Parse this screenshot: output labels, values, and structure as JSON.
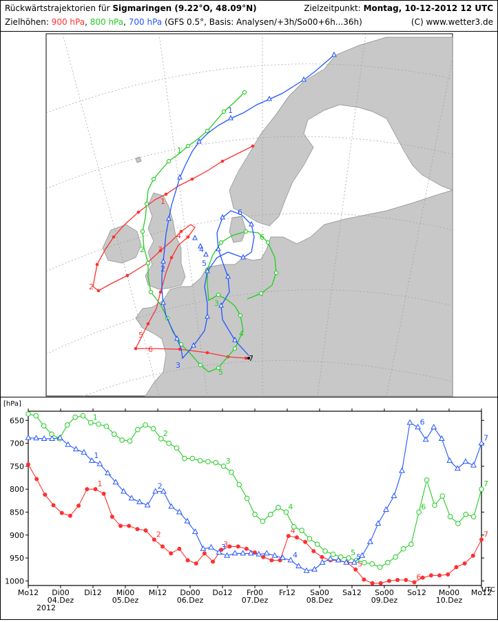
{
  "header": {
    "title_prefix": "Rückwärtstrajektorien für",
    "location": "Sigmaringen (9.22°O, 48.09°N)",
    "target_label": "Zielzeitpunkt:",
    "target_value": "Montag, 10-12-2012   12 UTC",
    "heights_label": "Zielhöhen:",
    "level_900": "900 hPa",
    "level_800": "800 hPa",
    "level_700": "700 hPa",
    "sep": ",",
    "basis": "(GFS 0.5°, Basis: Analysen/+3h/So00+6h...36h)",
    "copyright": "(C) www.wetter3.de"
  },
  "colors": {
    "hpa900": "#ff3030",
    "hpa800": "#22cc22",
    "hpa700": "#2255ff",
    "land": "#c8c8c8",
    "sea": "#ffffff"
  },
  "chart_data": {
    "type": "line",
    "yunit": "[hPa]",
    "xunit": "UTC",
    "ylim": [
      1010,
      630
    ],
    "yticks": [
      650,
      700,
      750,
      800,
      850,
      900,
      950,
      1000
    ],
    "xticks": [
      "Mo12",
      "Di00",
      "Di12",
      "Mi00",
      "Mi12",
      "Do00",
      "Do12",
      "Fr00",
      "Fr12",
      "Sa00",
      "Sa12",
      "So00",
      "So12",
      "Mo00",
      "Mo12"
    ],
    "xdates": [
      {
        "tick": 1,
        "label": "04.Dez"
      },
      {
        "tick": 3,
        "label": "05.Dez"
      },
      {
        "tick": 5,
        "label": "06.Dez"
      },
      {
        "tick": 7,
        "label": "07.Dez"
      },
      {
        "tick": 9,
        "label": "08.Dez"
      },
      {
        "tick": 11,
        "label": "09.Dez"
      },
      {
        "tick": 13,
        "label": "10.Dez"
      }
    ],
    "year": "2012",
    "grid": false,
    "day_markers": [
      "1",
      "2",
      "3",
      "4",
      "5",
      "6",
      "7"
    ],
    "series": [
      {
        "name": "900 hPa",
        "marker": "dot",
        "values": [
          746,
          778,
          812,
          835,
          852,
          858,
          836,
          800,
          800,
          810,
          860,
          880,
          880,
          887,
          890,
          910,
          925,
          940,
          930,
          955,
          962,
          940,
          958,
          932,
          925,
          925,
          930,
          938,
          948,
          955,
          955,
          902,
          905,
          915,
          935,
          948,
          955,
          955,
          960,
          975,
          997,
          1005,
          1005,
          1000,
          998,
          998,
          1003,
          993,
          988,
          988,
          986,
          970,
          962,
          945,
          910
        ]
      },
      {
        "name": "800 hPa",
        "marker": "circle",
        "values": [
          636,
          640,
          662,
          680,
          690,
          660,
          643,
          640,
          655,
          658,
          663,
          680,
          693,
          695,
          670,
          660,
          668,
          690,
          700,
          710,
          733,
          733,
          738,
          740,
          742,
          750,
          763,
          790,
          820,
          855,
          870,
          855,
          840,
          850,
          882,
          890,
          908,
          920,
          935,
          942,
          948,
          950,
          955,
          960,
          963,
          970,
          960,
          948,
          930,
          920,
          850,
          780,
          835,
          815,
          860,
          875,
          855,
          860,
          800
        ]
      },
      {
        "name": "700 hPa",
        "marker": "triangle",
        "values": [
          688,
          689,
          690,
          690,
          688,
          703,
          713,
          720,
          738,
          745,
          765,
          785,
          805,
          820,
          828,
          835,
          805,
          805,
          838,
          850,
          870,
          893,
          930,
          927,
          938,
          945,
          940,
          940,
          940,
          942,
          940,
          945,
          950,
          955,
          968,
          978,
          975,
          960,
          952,
          955,
          960,
          960,
          945,
          915,
          875,
          845,
          815,
          760,
          655,
          665,
          692,
          665,
          690,
          738,
          755,
          740,
          748,
          700
        ]
      }
    ]
  },
  "map": {
    "labels_900": [
      "1",
      "2",
      "3",
      "4",
      "5",
      "6",
      "7"
    ],
    "labels_800": [
      "1",
      "2",
      "3",
      "4",
      "5",
      "6"
    ],
    "labels_700": [
      "1",
      "2",
      "3",
      "4",
      "5",
      "6"
    ]
  }
}
